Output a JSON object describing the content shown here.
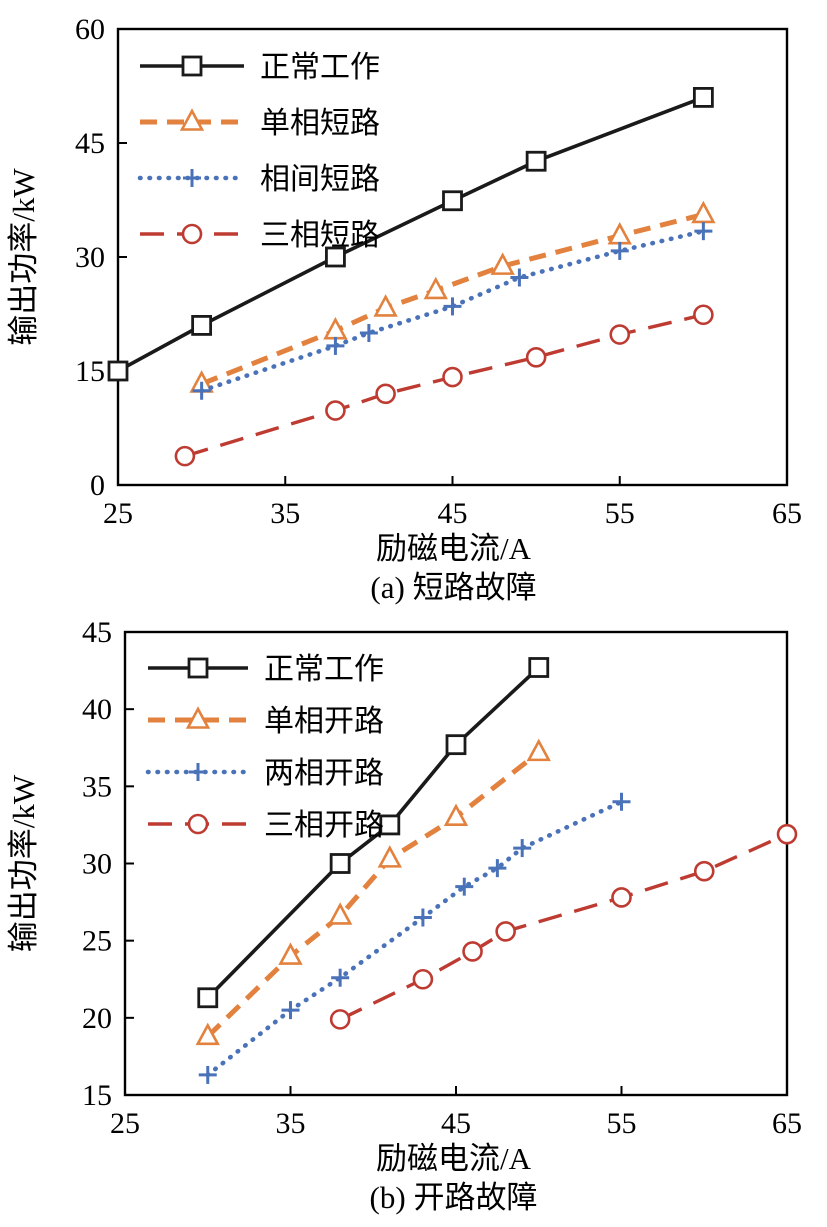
{
  "page": {
    "background": "#ffffff"
  },
  "chart_data": [
    {
      "id": "a",
      "type": "line",
      "caption": "(a) 短路故障",
      "xlabel": "励磁电流/A",
      "ylabel": "输出功率/kW",
      "xlim": [
        25,
        65
      ],
      "ylim": [
        0,
        60
      ],
      "xticks": [
        25,
        35,
        45,
        55,
        65
      ],
      "yticks": [
        0,
        15,
        30,
        45,
        60
      ],
      "grid": false,
      "legend_position": "top-left",
      "series": [
        {
          "name": "正常工作",
          "color": "#1a1a1a",
          "line": "solid",
          "marker": "square",
          "points": [
            [
              25,
              15
            ],
            [
              30,
              21
            ],
            [
              38,
              30
            ],
            [
              45,
              37.4
            ],
            [
              50,
              42.6
            ],
            [
              60,
              51
            ]
          ]
        },
        {
          "name": "单相短路",
          "color": "#E2823E",
          "line": "dashed",
          "marker": "triangle",
          "points": [
            [
              30,
              13.3
            ],
            [
              38,
              20.3
            ],
            [
              41,
              23.3
            ],
            [
              44,
              25.6
            ],
            [
              48,
              28.8
            ],
            [
              55,
              32.8
            ],
            [
              60,
              35.6
            ]
          ]
        },
        {
          "name": "相间短路",
          "color": "#4A72B8",
          "line": "dotted",
          "marker": "plus",
          "points": [
            [
              30,
              12.4
            ],
            [
              38,
              18.3
            ],
            [
              40,
              20
            ],
            [
              45,
              23.5
            ],
            [
              49,
              27.3
            ],
            [
              55,
              30.8
            ],
            [
              60,
              33.4
            ]
          ]
        },
        {
          "name": "三相短路",
          "color": "#BE3B32",
          "line": "dashed-long",
          "marker": "circle",
          "points": [
            [
              29,
              3.8
            ],
            [
              38,
              9.8
            ],
            [
              41,
              12
            ],
            [
              45,
              14.2
            ],
            [
              50,
              16.8
            ],
            [
              55,
              19.8
            ],
            [
              60,
              22.4
            ]
          ]
        }
      ]
    },
    {
      "id": "b",
      "type": "line",
      "caption": "(b) 开路故障",
      "xlabel": "励磁电流/A",
      "ylabel": "输出功率/kW",
      "xlim": [
        25,
        65
      ],
      "ylim": [
        15,
        45
      ],
      "xticks": [
        25,
        35,
        45,
        55,
        65
      ],
      "yticks": [
        15,
        20,
        25,
        30,
        35,
        40,
        45
      ],
      "grid": false,
      "legend_position": "top-left",
      "series": [
        {
          "name": "正常工作",
          "color": "#1a1a1a",
          "line": "solid",
          "marker": "square",
          "points": [
            [
              30,
              21.3
            ],
            [
              38,
              30
            ],
            [
              41,
              32.5
            ],
            [
              45,
              37.7
            ],
            [
              50,
              42.7
            ]
          ]
        },
        {
          "name": "单相开路",
          "color": "#E2823E",
          "line": "dashed",
          "marker": "triangle",
          "points": [
            [
              30,
              18.8
            ],
            [
              35,
              24
            ],
            [
              38,
              26.6
            ],
            [
              41,
              30.3
            ],
            [
              45,
              33
            ],
            [
              50,
              37.2
            ]
          ]
        },
        {
          "name": "两相开路",
          "color": "#4A72B8",
          "line": "dotted",
          "marker": "plus",
          "points": [
            [
              30,
              16.3
            ],
            [
              35,
              20.5
            ],
            [
              38,
              22.6
            ],
            [
              43,
              26.5
            ],
            [
              45.5,
              28.5
            ],
            [
              47.5,
              29.7
            ],
            [
              49,
              31
            ],
            [
              55,
              34
            ]
          ]
        },
        {
          "name": "三相开路",
          "color": "#BE3B32",
          "line": "dashed-long",
          "marker": "circle",
          "points": [
            [
              38,
              19.9
            ],
            [
              43,
              22.5
            ],
            [
              46,
              24.3
            ],
            [
              48,
              25.6
            ],
            [
              55,
              27.8
            ],
            [
              60,
              29.5
            ],
            [
              65,
              31.9
            ]
          ]
        }
      ]
    }
  ]
}
